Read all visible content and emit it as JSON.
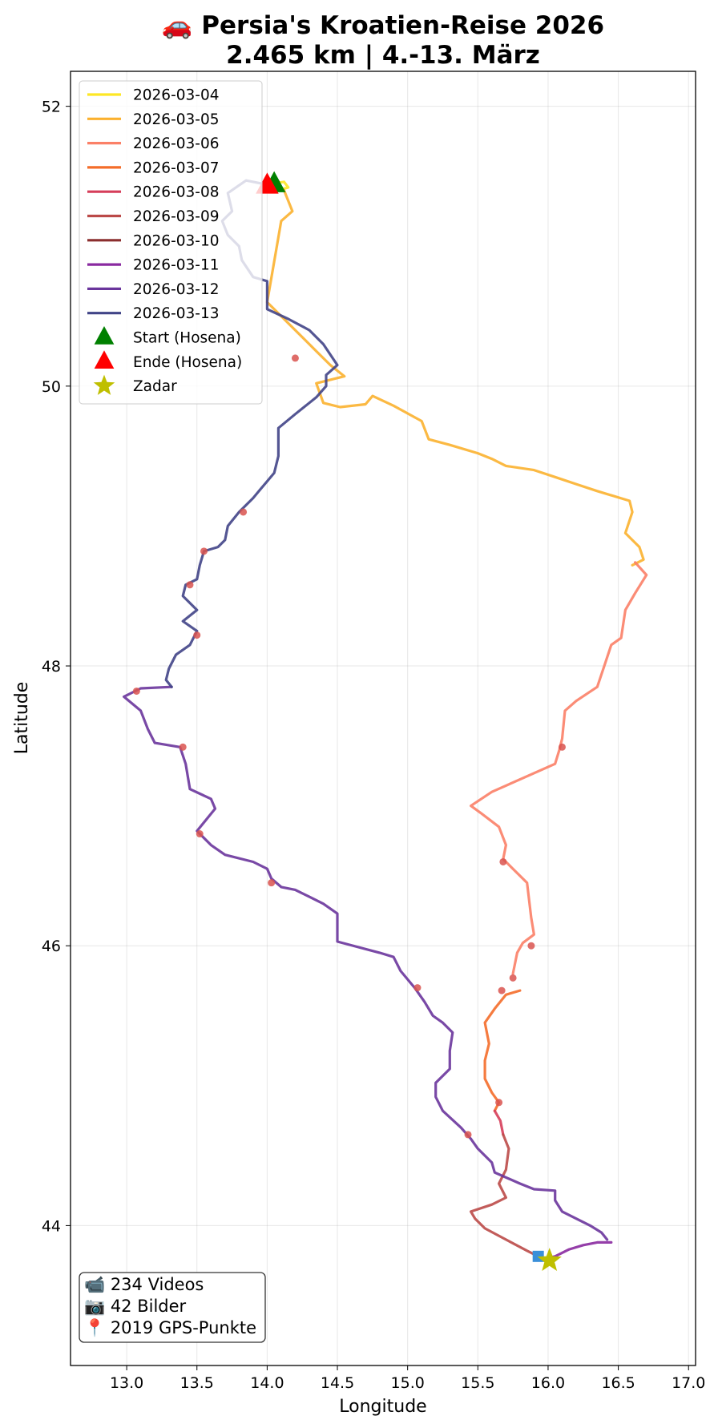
{
  "chart_data": {
    "type": "line",
    "title_line1": "🚗 Persia's Kroatien-Reise 2026",
    "title_line2": "2.465 km | 4.-13. März",
    "xlabel": "Longitude",
    "ylabel": "Latitude",
    "xlim": [
      12.6,
      17.05
    ],
    "ylim": [
      43.0,
      52.25
    ],
    "xticks": [
      13.0,
      13.5,
      14.0,
      14.5,
      15.0,
      15.5,
      16.0,
      16.5,
      17.0
    ],
    "xtick_labels": [
      "13.0",
      "13.5",
      "14.0",
      "14.5",
      "15.0",
      "15.5",
      "16.0",
      "16.5",
      "17.0"
    ],
    "yticks": [
      44,
      46,
      48,
      50,
      52
    ],
    "ytick_labels": [
      "44",
      "46",
      "48",
      "50",
      "52"
    ],
    "grid": true,
    "legend_position": "upper-left",
    "series": [
      {
        "name": "2026-03-04",
        "color": "#fde725",
        "points": [
          [
            14.05,
            51.45
          ],
          [
            14.12,
            51.46
          ],
          [
            14.15,
            51.42
          ],
          [
            14.08,
            51.4
          ]
        ]
      },
      {
        "name": "2026-03-05",
        "color": "#fbb12f",
        "points": [
          [
            14.12,
            51.4
          ],
          [
            14.18,
            51.25
          ],
          [
            14.1,
            51.18
          ],
          [
            14.0,
            50.6
          ],
          [
            14.2,
            50.4
          ],
          [
            14.35,
            50.25
          ],
          [
            14.45,
            50.15
          ],
          [
            14.55,
            50.07
          ],
          [
            14.35,
            50.02
          ],
          [
            14.4,
            49.88
          ],
          [
            14.52,
            49.85
          ],
          [
            14.7,
            49.87
          ],
          [
            14.75,
            49.93
          ],
          [
            14.9,
            49.86
          ],
          [
            15.1,
            49.75
          ],
          [
            15.15,
            49.62
          ],
          [
            15.3,
            49.58
          ],
          [
            15.5,
            49.52
          ],
          [
            15.6,
            49.48
          ],
          [
            15.7,
            49.43
          ],
          [
            15.9,
            49.4
          ],
          [
            16.05,
            49.35
          ],
          [
            16.2,
            49.3
          ],
          [
            16.35,
            49.25
          ],
          [
            16.58,
            49.18
          ],
          [
            16.6,
            49.1
          ],
          [
            16.55,
            48.95
          ],
          [
            16.65,
            48.85
          ],
          [
            16.68,
            48.76
          ],
          [
            16.6,
            48.72
          ]
        ]
      },
      {
        "name": "2026-03-06",
        "color": "#fb8067",
        "points": [
          [
            16.62,
            48.74
          ],
          [
            16.7,
            48.65
          ],
          [
            16.62,
            48.52
          ],
          [
            16.55,
            48.4
          ],
          [
            16.52,
            48.2
          ],
          [
            16.45,
            48.15
          ],
          [
            16.4,
            48.0
          ],
          [
            16.35,
            47.85
          ],
          [
            16.2,
            47.75
          ],
          [
            16.12,
            47.68
          ],
          [
            16.1,
            47.48
          ],
          [
            16.08,
            47.4
          ],
          [
            16.05,
            47.3
          ],
          [
            15.6,
            47.1
          ],
          [
            15.45,
            47.0
          ],
          [
            15.52,
            46.95
          ],
          [
            15.65,
            46.85
          ],
          [
            15.7,
            46.72
          ],
          [
            15.68,
            46.62
          ],
          [
            15.75,
            46.55
          ],
          [
            15.85,
            46.45
          ],
          [
            15.88,
            46.2
          ],
          [
            15.9,
            46.08
          ],
          [
            15.82,
            46.02
          ],
          [
            15.78,
            45.95
          ],
          [
            15.75,
            45.8
          ]
        ]
      },
      {
        "name": "2026-03-07",
        "color": "#f46d2a",
        "points": [
          [
            15.8,
            45.68
          ],
          [
            15.7,
            45.65
          ],
          [
            15.62,
            45.55
          ],
          [
            15.55,
            45.45
          ],
          [
            15.58,
            45.3
          ],
          [
            15.55,
            45.18
          ],
          [
            15.55,
            45.05
          ],
          [
            15.6,
            44.95
          ],
          [
            15.65,
            44.88
          ],
          [
            15.62,
            44.82
          ]
        ]
      },
      {
        "name": "2026-03-08",
        "color": "#d63e5a",
        "points": [
          [
            15.62,
            44.82
          ],
          [
            15.66,
            44.75
          ],
          [
            15.68,
            44.65
          ]
        ]
      },
      {
        "name": "2026-03-09",
        "color": "#bb4a48",
        "points": [
          [
            15.68,
            44.65
          ],
          [
            15.72,
            44.55
          ],
          [
            15.7,
            44.4
          ],
          [
            15.65,
            44.3
          ],
          [
            15.7,
            44.2
          ],
          [
            15.6,
            44.15
          ],
          [
            15.45,
            44.1
          ],
          [
            15.48,
            44.05
          ],
          [
            15.55,
            43.98
          ],
          [
            15.7,
            43.9
          ],
          [
            15.85,
            43.82
          ],
          [
            15.93,
            43.78
          ]
        ]
      },
      {
        "name": "2026-03-10",
        "color": "#8b2e2e",
        "points": [
          [
            15.93,
            43.78
          ],
          [
            15.96,
            43.76
          ]
        ]
      },
      {
        "name": "2026-03-11",
        "color": "#8a2aa0",
        "points": [
          [
            15.96,
            43.76
          ],
          [
            16.05,
            43.78
          ],
          [
            16.15,
            43.83
          ],
          [
            16.25,
            43.86
          ],
          [
            16.35,
            43.88
          ],
          [
            16.45,
            43.88
          ]
        ]
      },
      {
        "name": "2026-03-12",
        "color": "#6a359c",
        "points": [
          [
            16.42,
            43.9
          ],
          [
            16.38,
            43.95
          ],
          [
            16.3,
            44.0
          ],
          [
            16.2,
            44.05
          ],
          [
            16.1,
            44.1
          ],
          [
            16.05,
            44.18
          ],
          [
            16.05,
            44.25
          ],
          [
            15.9,
            44.26
          ],
          [
            15.8,
            44.3
          ],
          [
            15.62,
            44.38
          ],
          [
            15.6,
            44.45
          ],
          [
            15.5,
            44.55
          ],
          [
            15.45,
            44.62
          ],
          [
            15.38,
            44.7
          ],
          [
            15.25,
            44.82
          ],
          [
            15.2,
            44.92
          ],
          [
            15.2,
            45.02
          ],
          [
            15.3,
            45.12
          ],
          [
            15.3,
            45.25
          ],
          [
            15.32,
            45.38
          ],
          [
            15.25,
            45.45
          ],
          [
            15.18,
            45.5
          ],
          [
            15.12,
            45.6
          ],
          [
            15.05,
            45.7
          ],
          [
            14.95,
            45.82
          ],
          [
            14.9,
            45.92
          ],
          [
            14.8,
            45.95
          ],
          [
            14.5,
            46.03
          ],
          [
            14.5,
            46.15
          ],
          [
            14.5,
            46.23
          ],
          [
            14.4,
            46.3
          ],
          [
            14.3,
            46.35
          ],
          [
            14.2,
            46.4
          ],
          [
            14.1,
            46.42
          ],
          [
            14.03,
            46.48
          ],
          [
            14.0,
            46.55
          ],
          [
            13.9,
            46.6
          ],
          [
            13.7,
            46.65
          ],
          [
            13.6,
            46.72
          ],
          [
            13.5,
            46.82
          ],
          [
            13.63,
            46.98
          ],
          [
            13.6,
            47.05
          ],
          [
            13.45,
            47.12
          ],
          [
            13.42,
            47.3
          ],
          [
            13.38,
            47.42
          ],
          [
            13.2,
            47.45
          ],
          [
            13.15,
            47.55
          ],
          [
            13.1,
            47.68
          ],
          [
            12.98,
            47.78
          ],
          [
            13.1,
            47.84
          ],
          [
            13.32,
            47.85
          ]
        ]
      },
      {
        "name": "2026-03-13",
        "color": "#414487",
        "points": [
          [
            13.32,
            47.85
          ],
          [
            13.28,
            47.9
          ],
          [
            13.3,
            47.98
          ],
          [
            13.35,
            48.08
          ],
          [
            13.45,
            48.15
          ],
          [
            13.5,
            48.25
          ],
          [
            13.4,
            48.32
          ],
          [
            13.5,
            48.4
          ],
          [
            13.4,
            48.5
          ],
          [
            13.42,
            48.58
          ],
          [
            13.5,
            48.62
          ],
          [
            13.52,
            48.72
          ],
          [
            13.55,
            48.82
          ],
          [
            13.65,
            48.85
          ],
          [
            13.7,
            48.9
          ],
          [
            13.72,
            49.0
          ],
          [
            13.8,
            49.1
          ],
          [
            13.9,
            49.2
          ],
          [
            13.95,
            49.26
          ],
          [
            14.0,
            49.32
          ],
          [
            14.05,
            49.38
          ],
          [
            14.08,
            49.5
          ],
          [
            14.08,
            49.7
          ],
          [
            14.2,
            49.8
          ],
          [
            14.35,
            49.92
          ],
          [
            14.42,
            50.0
          ],
          [
            14.42,
            50.08
          ],
          [
            14.5,
            50.15
          ],
          [
            14.4,
            50.3
          ],
          [
            14.3,
            50.4
          ],
          [
            14.15,
            50.48
          ],
          [
            14.0,
            50.55
          ],
          [
            14.0,
            50.75
          ],
          [
            13.9,
            50.78
          ],
          [
            13.82,
            50.9
          ],
          [
            13.8,
            51.0
          ],
          [
            13.72,
            51.08
          ],
          [
            13.68,
            51.18
          ],
          [
            13.75,
            51.25
          ],
          [
            13.72,
            51.38
          ],
          [
            13.85,
            51.47
          ],
          [
            14.0,
            51.44
          ]
        ]
      }
    ],
    "markers": [
      {
        "name": "Start (Hosena)",
        "shape": "triangle",
        "color": "#008000",
        "x": 14.05,
        "y": 51.45
      },
      {
        "name": "Ende (Hosena)",
        "shape": "triangle",
        "color": "#ff0000",
        "x": 14.0,
        "y": 51.44
      },
      {
        "name": "Zadar",
        "shape": "star",
        "color": "#bfbf00",
        "x": 16.01,
        "y": 43.75
      }
    ],
    "media_points": [
      [
        14.2,
        50.2
      ],
      [
        13.83,
        49.1
      ],
      [
        13.55,
        48.82
      ],
      [
        13.45,
        48.58
      ],
      [
        13.5,
        48.22
      ],
      [
        13.07,
        47.82
      ],
      [
        13.4,
        47.42
      ],
      [
        13.52,
        46.8
      ],
      [
        14.03,
        46.45
      ],
      [
        15.07,
        45.7
      ],
      [
        15.43,
        44.65
      ],
      [
        16.1,
        47.42
      ],
      [
        15.68,
        46.6
      ],
      [
        15.88,
        46.0
      ],
      [
        15.75,
        45.77
      ],
      [
        15.67,
        45.68
      ],
      [
        15.65,
        44.88
      ]
    ],
    "media_color": "#d9534f",
    "highlight_point": {
      "color": "#3a8fd9",
      "x": 15.93,
      "y": 43.78
    },
    "info_box": {
      "line1": "📹 234 Videos",
      "line2": "📷 42 Bilder",
      "line3": "📍 2019 GPS-Punkte"
    }
  }
}
